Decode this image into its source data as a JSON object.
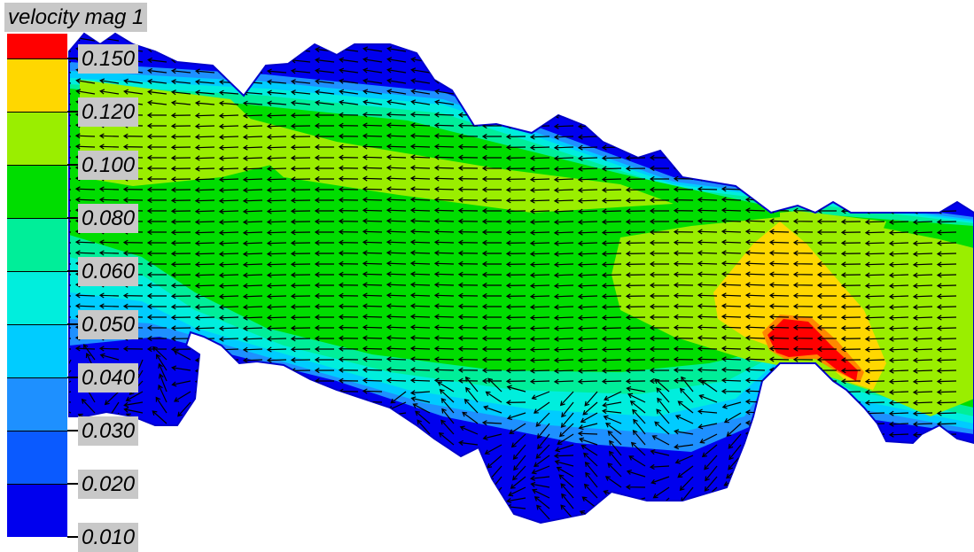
{
  "chart_data": {
    "type": "heatmap",
    "title": "",
    "xlabel": "",
    "ylabel": "",
    "legend": {
      "title": "velocity mag 1",
      "placement": "left",
      "ticks": [
        "0.150",
        "0.120",
        "0.100",
        "0.080",
        "0.060",
        "0.050",
        "0.040",
        "0.030",
        "0.020",
        "0.010"
      ],
      "colors": [
        "#ff0000",
        "#ffd700",
        "#9aee00",
        "#00dd00",
        "#00ee99",
        "#00eedd",
        "#00ccff",
        "#1e90ff",
        "#0a5aff",
        "#0000ee"
      ]
    },
    "field": {
      "variable": "velocity magnitude",
      "dominant_flow_direction": "right-to-left",
      "vectors_shown": true
    }
  }
}
